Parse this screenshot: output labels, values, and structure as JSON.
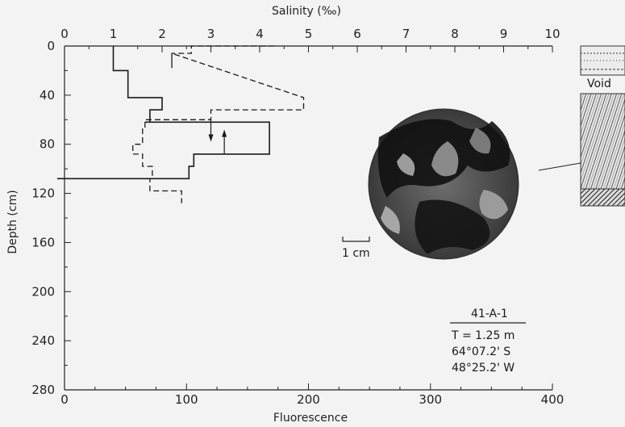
{
  "chart_data": {
    "type": "line",
    "top_axis": {
      "label": "Salinity (‰)",
      "range": [
        0,
        10
      ],
      "ticks": [
        "0",
        "1",
        "2",
        "3",
        "4",
        "5",
        "6",
        "7",
        "8",
        "9",
        "10"
      ]
    },
    "bottom_axis": {
      "label": "Fluorescence",
      "range": [
        0,
        400
      ],
      "ticks": [
        "0",
        "100",
        "200",
        "300",
        "400"
      ]
    },
    "y_axis": {
      "label": "Depth (cm)",
      "range": [
        0,
        280
      ],
      "inverted": true,
      "ticks": [
        "0",
        "40",
        "80",
        "120",
        "160",
        "200",
        "240",
        "280"
      ]
    },
    "series": [
      {
        "style": "solid",
        "axis": "bottom",
        "points": [
          [
            40,
            0
          ],
          [
            40,
            20
          ],
          [
            52,
            20
          ],
          [
            52,
            42
          ],
          [
            80,
            42
          ],
          [
            80,
            52
          ],
          [
            70,
            52
          ],
          [
            70,
            58
          ],
          [
            70,
            62
          ],
          [
            66,
            62
          ],
          [
            66,
            62
          ],
          [
            168,
            62
          ],
          [
            168,
            88
          ],
          [
            106,
            88
          ],
          [
            106,
            98
          ],
          [
            102,
            98
          ],
          [
            102,
            108
          ],
          [
            -6,
            108
          ]
        ]
      },
      {
        "style": "dashed",
        "axis": "top",
        "points": [
          [
            4.3,
            0
          ],
          [
            2.6,
            0
          ],
          [
            2.6,
            6
          ],
          [
            2.2,
            6
          ],
          [
            2.2,
            18
          ],
          [
            2.2,
            6
          ],
          [
            4.9,
            42
          ],
          [
            4.9,
            52
          ],
          [
            3.0,
            52
          ],
          [
            3.0,
            60
          ],
          [
            1.65,
            60
          ],
          [
            1.65,
            66
          ],
          [
            1.6,
            66
          ],
          [
            1.6,
            80
          ],
          [
            1.4,
            80
          ],
          [
            1.4,
            88
          ],
          [
            1.6,
            88
          ],
          [
            1.6,
            98
          ],
          [
            1.8,
            98
          ],
          [
            1.8,
            108
          ],
          [
            1.75,
            108
          ],
          [
            1.75,
            118
          ],
          [
            2.4,
            118
          ],
          [
            2.4,
            128
          ]
        ]
      }
    ],
    "annotations": {
      "arrow_down_note": "",
      "void_label": "Void",
      "scale_label": "1 cm",
      "core_id": "41-A-1",
      "info_lines": [
        "T = 1.25 m",
        "64°07.2' S",
        "48°25.2' W"
      ]
    }
  }
}
